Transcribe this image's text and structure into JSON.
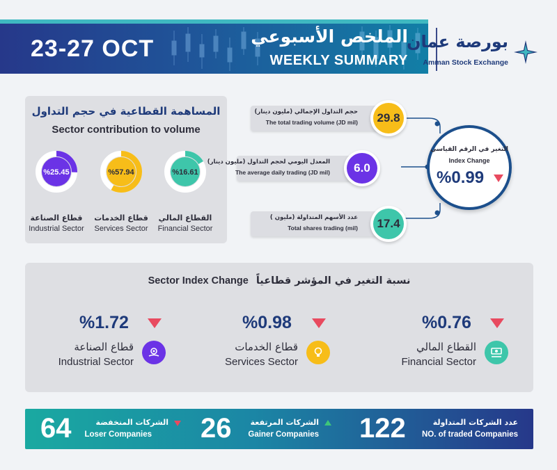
{
  "header": {
    "date": "23-27 OCT",
    "title_ar": "الملخص الأسبوعي",
    "title_en": "WEEKLY SUMMARY",
    "logo_ar": "بورصة عمان",
    "logo_en": "Amman Stock Exchange"
  },
  "contribution": {
    "title_ar": "المساهمة القطاعية في حجم التداول",
    "title_en": "Sector contribution to volume",
    "sectors": [
      {
        "label_ar": "قطاع الصناعة",
        "label_en": "Industrial Sector",
        "value": "%25.45",
        "fraction": 0.2545,
        "color": "#6b33e6"
      },
      {
        "label_ar": "قطاع الخدمات",
        "label_en": "Services Sector",
        "value": "%57.94",
        "fraction": 0.5794,
        "color": "#f7bd19"
      },
      {
        "label_ar": "القطاع المالي",
        "label_en": "Financial Sector",
        "value": "%16.61",
        "fraction": 0.1661,
        "color": "#3ec6aa"
      }
    ]
  },
  "stats": {
    "volume": {
      "label_ar": "حجم التداول الإجمالي (مليون دينار)",
      "label_en": "The total trading volume (JD mil)",
      "value": "29.8"
    },
    "daily": {
      "label_ar": "المعدل اليومي لحجم التداول (مليون دينار)",
      "label_en": "The average daily trading (JD mil)",
      "value": "6.0"
    },
    "shares": {
      "label_ar": "عدد الأسهم المتداولة (مليون )",
      "label_en": "Total shares trading (mil)",
      "value": "17.4"
    }
  },
  "index_change": {
    "label_ar": "التغير في الرقم القياسي",
    "label_en": "Index Change",
    "value": "%0.99",
    "direction": "down"
  },
  "sector_index": {
    "heading_en": "Sector Index Change",
    "heading_ar": "نسبة التغير في المؤشر قطاعياً",
    "sectors": [
      {
        "name_ar": "قطاع الصناعة",
        "name_en": "Industrial Sector",
        "value": "%1.72",
        "direction": "down",
        "icon": "gear-hand-icon",
        "color": "#6b33e6"
      },
      {
        "name_ar": "قطاع الخدمات",
        "name_en": "Services Sector",
        "value": "%0.98",
        "direction": "down",
        "icon": "lightbulb-icon",
        "color": "#f7bd19"
      },
      {
        "name_ar": "القطاع المالي",
        "name_en": "Financial Sector",
        "value": "%0.76",
        "direction": "down",
        "icon": "money-hand-icon",
        "color": "#3ec6aa"
      }
    ]
  },
  "companies": {
    "loser": {
      "label_ar": "الشركات المنخفضة",
      "label_en": "Loser Companies",
      "value": "64"
    },
    "gainer": {
      "label_ar": "الشركات المرتفعة",
      "label_en": "Gainer Companies",
      "value": "26"
    },
    "traded": {
      "label_ar": "عدد الشركات المتداولة",
      "label_en": "NO. of traded Companies",
      "value": "122"
    }
  }
}
